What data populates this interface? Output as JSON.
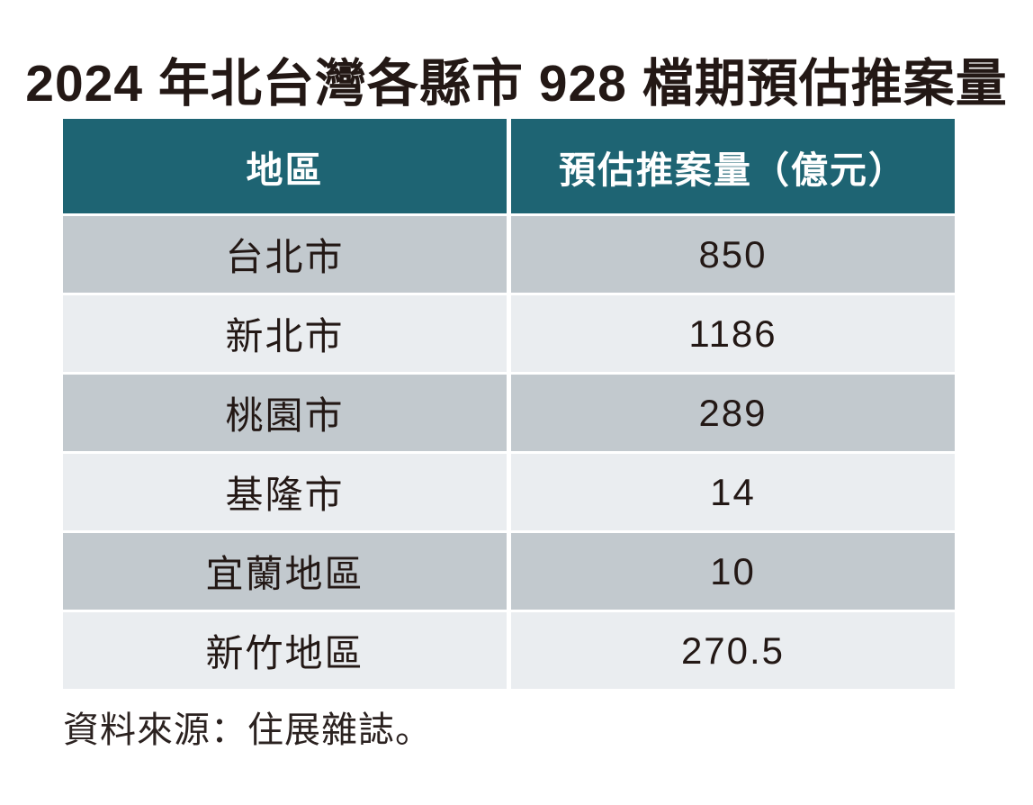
{
  "page": {
    "title": "2024 年北台灣各縣市 928 檔期預估推案量",
    "source_note": "資料來源：住展雜誌。"
  },
  "colors": {
    "header_bg": "#1e6473",
    "header_text": "#ffffff",
    "row_dark": "#c2c9ce",
    "row_light": "#eaedf0",
    "text": "#231815"
  },
  "table": {
    "headers": {
      "region": "地區",
      "volume": "預估推案量（億元）"
    },
    "rows": [
      {
        "region": "台北市",
        "volume": "850"
      },
      {
        "region": "新北市",
        "volume": "1186"
      },
      {
        "region": "桃園市",
        "volume": "289"
      },
      {
        "region": "基隆市",
        "volume": "14"
      },
      {
        "region": "宜蘭地區",
        "volume": "10"
      },
      {
        "region": "新竹地區",
        "volume": "270.5"
      }
    ]
  },
  "chart_data": {
    "type": "table",
    "title": "2024 年北台灣各縣市 928 檔期預估推案量",
    "columns": [
      "地區",
      "預估推案量（億元）"
    ],
    "rows": [
      [
        "台北市",
        850
      ],
      [
        "新北市",
        1186
      ],
      [
        "桃園市",
        289
      ],
      [
        "基隆市",
        14
      ],
      [
        "宜蘭地區",
        10
      ],
      [
        "新竹地區",
        270.5
      ]
    ],
    "unit": "億元",
    "source": "資料來源：住展雜誌。"
  }
}
